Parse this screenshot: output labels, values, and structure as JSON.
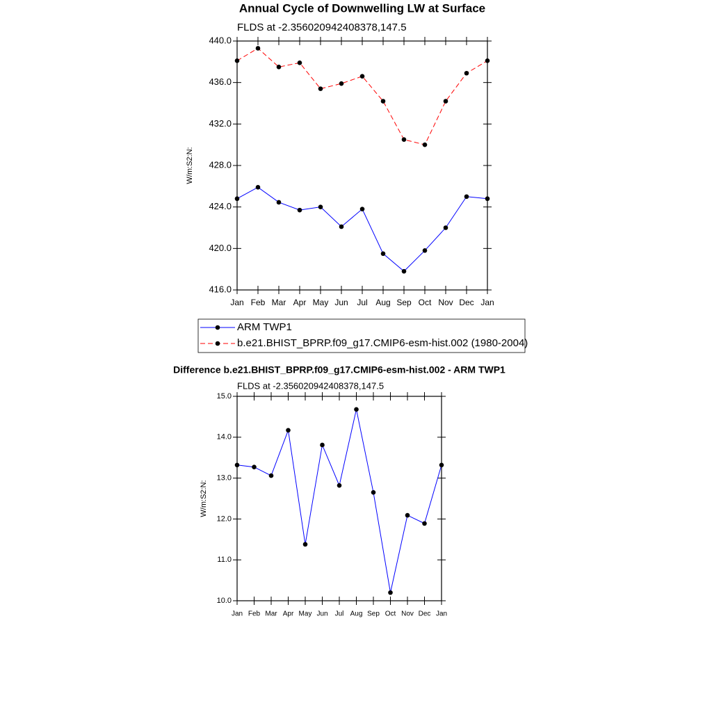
{
  "chart_data": [
    {
      "type": "line",
      "title": "Annual Cycle of Downwelling LW at Surface",
      "subtitle": "FLDS at -2.356020942408378,147.5",
      "y_label": "W/m:S2:N:",
      "categories": [
        "Jan",
        "Feb",
        "Mar",
        "Apr",
        "May",
        "Jun",
        "Jul",
        "Aug",
        "Sep",
        "Oct",
        "Nov",
        "Dec",
        "Jan"
      ],
      "series": [
        {
          "name": "ARM TWP1",
          "color": "#0000ff",
          "dashed": false,
          "values": [
            424.8,
            425.9,
            424.45,
            423.7,
            424.0,
            422.1,
            423.8,
            419.5,
            417.8,
            419.8,
            422.0,
            425.0,
            424.8
          ]
        },
        {
          "name": "b.e21.BHIST_BPRP.f09_g17.CMIP6-esm-hist.002 (1980-2004)",
          "color": "#ff0000",
          "dashed": true,
          "values": [
            438.1,
            439.3,
            437.5,
            437.9,
            435.4,
            435.9,
            436.6,
            434.2,
            430.5,
            430.0,
            434.2,
            436.9,
            438.1
          ]
        }
      ],
      "marker_color": "#000000",
      "ylim": [
        416,
        440
      ],
      "yticks": [
        {
          "value": 416,
          "label": "416.0"
        },
        {
          "value": 420,
          "label": "420.0"
        },
        {
          "value": 424,
          "label": "424.0"
        },
        {
          "value": 428,
          "label": "428.0"
        },
        {
          "value": 432,
          "label": "432.0"
        },
        {
          "value": 436,
          "label": "436.0"
        },
        {
          "value": 440,
          "label": "440.0"
        }
      ],
      "legend": "bottom"
    },
    {
      "type": "line",
      "title": "Difference b.e21.BHIST_BPRP.f09_g17.CMIP6-esm-hist.002 - ARM TWP1",
      "subtitle": "FLDS at -2.356020942408378,147.5",
      "y_label": "W/m:S2:N:",
      "categories": [
        "Jan",
        "Feb",
        "Mar",
        "Apr",
        "May",
        "Jun",
        "Jul",
        "Aug",
        "Sep",
        "Oct",
        "Nov",
        "Dec",
        "Jan"
      ],
      "values": [
        13.32,
        13.27,
        13.06,
        14.17,
        11.38,
        13.81,
        12.82,
        14.68,
        12.65,
        10.2,
        12.09,
        11.89,
        13.32
      ],
      "color": "#0000ff",
      "marker_color": "#000000",
      "ylim": [
        10,
        15
      ],
      "yticks": [
        {
          "value": 10,
          "label": "10.0"
        },
        {
          "value": 11,
          "label": "11.0"
        },
        {
          "value": 12,
          "label": "12.0"
        },
        {
          "value": 13,
          "label": "13.0"
        },
        {
          "value": 14,
          "label": "14.0"
        },
        {
          "value": 15,
          "label": "15.0"
        }
      ]
    }
  ]
}
